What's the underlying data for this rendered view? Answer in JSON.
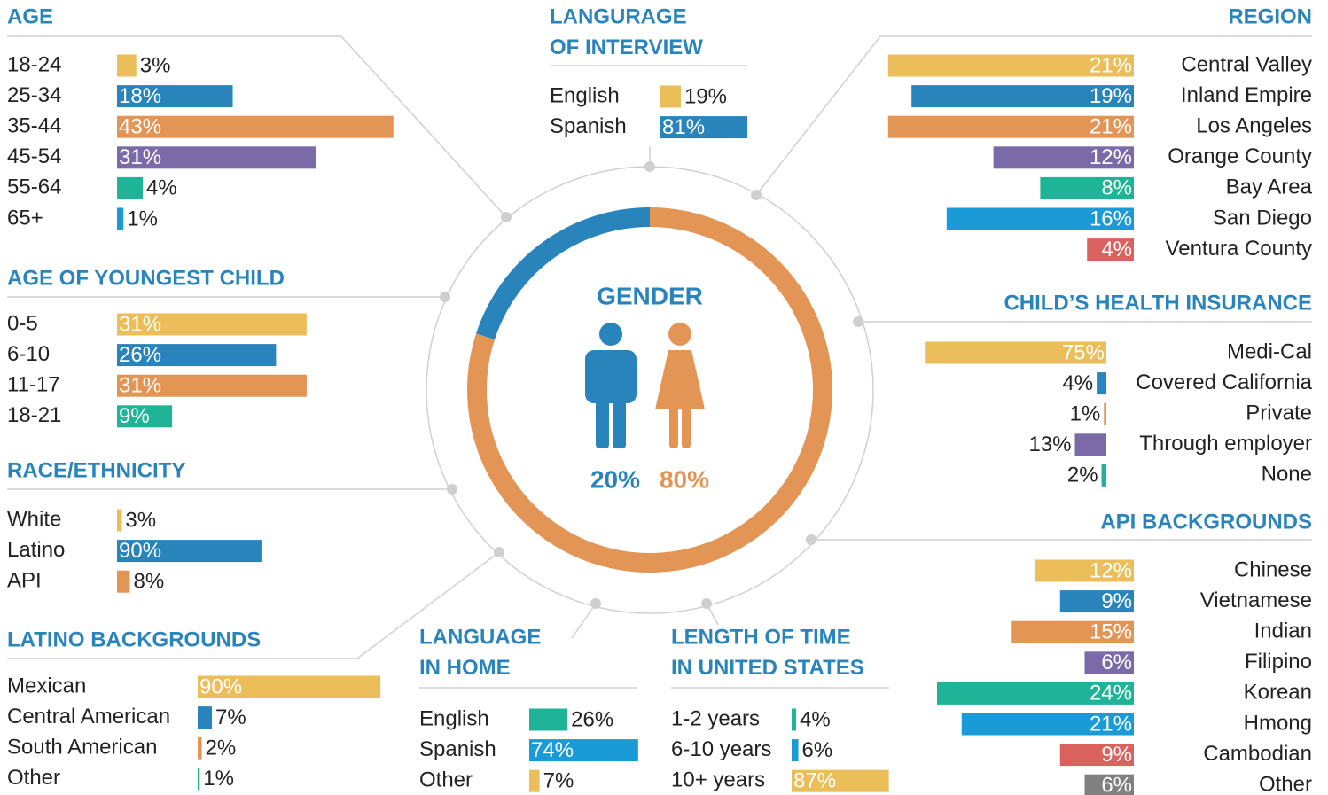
{
  "chart_data": [
    {
      "type": "bar",
      "title": [
        "AGE"
      ],
      "categories": [
        "18-24",
        "25-34",
        "35-44",
        "45-54",
        "55-64",
        "65+"
      ],
      "values": [
        3,
        18,
        43,
        31,
        4,
        1
      ],
      "value_labels": [
        "3%",
        "18%",
        "43%",
        "31%",
        "4%",
        "1%"
      ],
      "colors": [
        "#ebbe5a",
        "#2a84bc",
        "#e39556",
        "#7a6ba8",
        "#1fb497",
        "#1a9ad6"
      ]
    },
    {
      "type": "bar",
      "title": [
        "AGE OF YOUNGEST CHILD"
      ],
      "categories": [
        "0-5",
        "6-10",
        "11-17",
        "18-21"
      ],
      "values": [
        31,
        26,
        31,
        9
      ],
      "value_labels": [
        "31%",
        "26%",
        "31%",
        "9%"
      ],
      "colors": [
        "#ebbe5a",
        "#2a84bc",
        "#e39556",
        "#1fb497"
      ]
    },
    {
      "type": "bar",
      "title": [
        "RACE/ETHNICITY"
      ],
      "categories": [
        "White",
        "Latino",
        "API"
      ],
      "values": [
        3,
        90,
        8
      ],
      "value_labels": [
        "3%",
        "90%",
        "8%"
      ],
      "colors": [
        "#ebbe5a",
        "#2a84bc",
        "#e39556"
      ]
    },
    {
      "type": "bar",
      "title": [
        "LATINO BACKGROUNDS"
      ],
      "categories": [
        "Mexican",
        "Central American",
        "South American",
        "Other"
      ],
      "values": [
        90,
        7,
        2,
        1
      ],
      "value_labels": [
        "90%",
        "7%",
        "2%",
        "1%"
      ],
      "colors": [
        "#ebbe5a",
        "#2a84bc",
        "#e39556",
        "#1fb497"
      ]
    },
    {
      "type": "bar",
      "title": [
        "LANGUAGE",
        "IN HOME"
      ],
      "categories": [
        "English",
        "Spanish",
        "Other"
      ],
      "values": [
        26,
        74,
        7
      ],
      "value_labels": [
        "26%",
        "74%",
        "7%"
      ],
      "colors": [
        "#1fb497",
        "#1a9ad6",
        "#ebbe5a"
      ]
    },
    {
      "type": "bar",
      "title": [
        "LENGTH OF TIME",
        "IN UNITED STATES"
      ],
      "categories": [
        "1-2 years",
        "6-10 years",
        "10+ years"
      ],
      "values": [
        4,
        6,
        87
      ],
      "value_labels": [
        "4%",
        "6%",
        "87%"
      ],
      "colors": [
        "#1fb497",
        "#1a9ad6",
        "#ebbe5a"
      ]
    },
    {
      "type": "bar",
      "title": [
        "LANGURAGE",
        "OF INTERVIEW"
      ],
      "categories": [
        "English",
        "Spanish"
      ],
      "values": [
        19,
        81
      ],
      "value_labels": [
        "19%",
        "81%"
      ],
      "colors": [
        "#ebbe5a",
        "#2a84bc"
      ]
    },
    {
      "type": "bar",
      "title": [
        "REGION"
      ],
      "categories": [
        "Central Valley",
        "Inland Empire",
        "Los Angeles",
        "Orange County",
        "Bay Area",
        "San Diego",
        "Ventura County"
      ],
      "values": [
        21,
        19,
        21,
        12,
        8,
        16,
        4
      ],
      "value_labels": [
        "21%",
        "19%",
        "21%",
        "12%",
        "8%",
        "16%",
        "4%"
      ],
      "colors": [
        "#ebbe5a",
        "#2a84bc",
        "#e39556",
        "#7a6ba8",
        "#1fb497",
        "#1a9ad6",
        "#d9625e"
      ]
    },
    {
      "type": "bar",
      "title": [
        "CHILD’S HEALTH INSURANCE"
      ],
      "categories": [
        "Medi-Cal",
        "Covered California",
        "Private",
        "Through employer",
        "None"
      ],
      "values": [
        75,
        4,
        1,
        13,
        2
      ],
      "value_labels": [
        "75%",
        "4%",
        "1%",
        "13%",
        "2%"
      ],
      "colors": [
        "#ebbe5a",
        "#2a84bc",
        "#e39556",
        "#7a6ba8",
        "#1fb497"
      ]
    },
    {
      "type": "bar",
      "title": [
        "API BACKGROUNDS"
      ],
      "categories": [
        "Chinese",
        "Vietnamese",
        "Indian",
        "Filipino",
        "Korean",
        "Hmong",
        "Cambodian",
        "Other"
      ],
      "values": [
        12,
        9,
        15,
        6,
        24,
        21,
        9,
        6
      ],
      "value_labels": [
        "12%",
        "9%",
        "15%",
        "6%",
        "24%",
        "21%",
        "9%",
        "6%"
      ],
      "colors": [
        "#ebbe5a",
        "#2a84bc",
        "#e39556",
        "#7a6ba8",
        "#1fb497",
        "#1a9ad6",
        "#d9625e",
        "#808080"
      ]
    },
    {
      "type": "donut",
      "title": [
        "GENDER"
      ],
      "values": [
        20,
        80
      ],
      "value_labels": [
        "20%",
        "80%"
      ],
      "colors": [
        "#2a84bc",
        "#e39556"
      ]
    }
  ]
}
